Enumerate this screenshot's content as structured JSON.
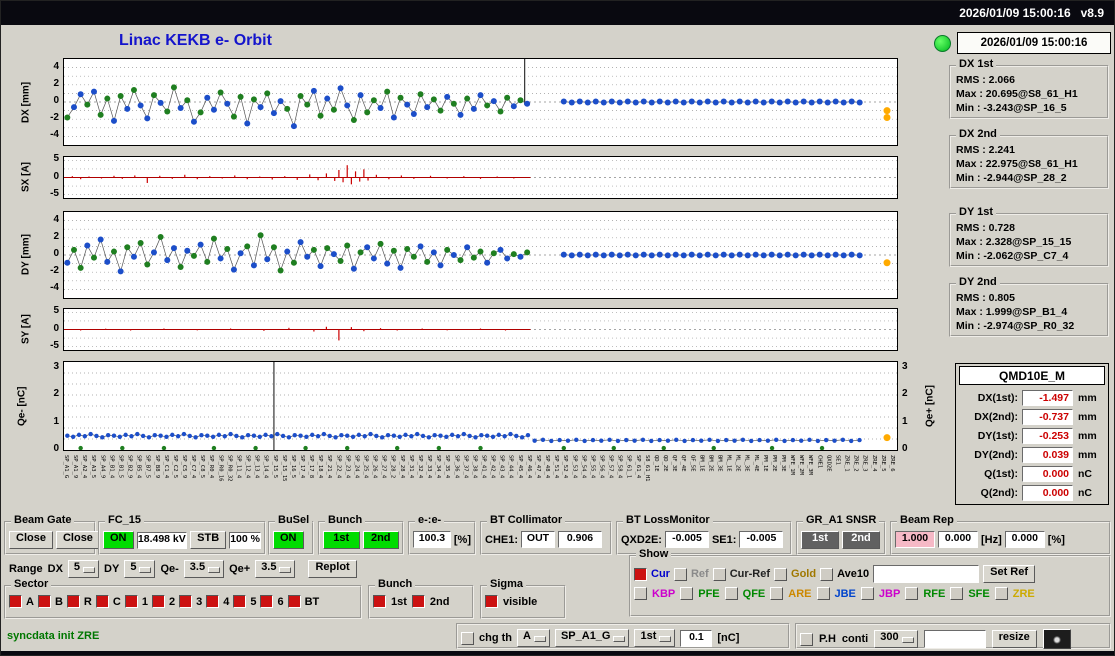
{
  "topbar": {
    "text": "2026/01/09 15:00:16   v8.9"
  },
  "header": {
    "title": "Linac KEKB e- Orbit",
    "timestamp": "2026/01/09 15:00:16"
  },
  "stats": [
    {
      "title": "DX 1st",
      "rows": [
        "RMS : 2.066",
        "Max : 20.695@S8_61_H1",
        "Min : -3.243@SP_16_5"
      ]
    },
    {
      "title": "DX 2nd",
      "rows": [
        "RMS : 2.241",
        "Max : 22.975@S8_61_H1",
        "Min : -2.944@SP_28_2"
      ]
    },
    {
      "title": "DY 1st",
      "rows": [
        "RMS : 0.728",
        "Max : 2.328@SP_15_15",
        "Min : -2.062@SP_C7_4"
      ]
    },
    {
      "title": "DY 2nd",
      "rows": [
        "RMS : 0.805",
        "Max : 1.999@SP_B1_4",
        "Min : -2.974@SP_R0_32"
      ]
    }
  ],
  "qmd": {
    "title": "QMD10E_M",
    "rows": [
      {
        "label": "DX(1st):",
        "value": "-1.497",
        "unit": "mm"
      },
      {
        "label": "DX(2nd):",
        "value": "-0.737",
        "unit": "mm"
      },
      {
        "label": "DY(1st):",
        "value": "-0.253",
        "unit": "mm"
      },
      {
        "label": "DY(2nd):",
        "value": "0.039",
        "unit": "mm"
      },
      {
        "label": "Q(1st):",
        "value": "0.000",
        "unit": "nC"
      },
      {
        "label": "Q(2nd):",
        "value": "0.000",
        "unit": "nC"
      }
    ]
  },
  "plots": [
    {
      "id": "dx",
      "type": "scatter-line",
      "ylabel": "DX [mm]",
      "ymin": -5,
      "ymax": 5,
      "grid": [
        -4,
        -3,
        -2,
        -1,
        1,
        2,
        3,
        4
      ],
      "zero": true,
      "ticks": [
        [
          4,
          "4"
        ],
        [
          2,
          "2"
        ],
        [
          0,
          "0"
        ],
        [
          -2,
          "-2"
        ],
        [
          -4,
          "-4"
        ]
      ],
      "spikes": [
        [
          0.553,
          -0.3,
          5
        ]
      ],
      "markers": [
        [
          0.988,
          -1.0
        ],
        [
          0.988,
          -1.8
        ]
      ],
      "series": [
        {
          "x_start": 0.004,
          "x_step": 0.008,
          "ys": [
            -1.8,
            -0.6,
            0.9,
            -0.3,
            1.2,
            -1.5,
            0.4,
            -2.2,
            0.7,
            -0.8,
            1.4,
            -0.4,
            -1.9,
            0.8,
            -0.1,
            -1.1,
            1.7,
            -0.7,
            0.2,
            -2.3,
            -1.2,
            0.5,
            -0.9,
            1.1,
            -0.2,
            -1.7,
            0.6,
            -2.5,
            0.3,
            -0.6,
            1.0,
            -1.3,
            0.1,
            -0.8,
            -2.8,
            0.7,
            -0.3,
            1.3,
            -1.6,
            0.4,
            -0.9,
            1.6,
            -0.4,
            -2.1,
            0.8,
            -1.2,
            0.2,
            -0.7,
            1.2,
            -1.8,
            0.5,
            -0.3,
            -1.4,
            0.9,
            -0.6,
            0.3,
            -1.0,
            0.6,
            -0.2,
            -1.5,
            0.4,
            -0.8,
            0.8,
            -0.4,
            0.1,
            -1.1,
            0.5,
            -0.5,
            0.2,
            -0.2
          ],
          "cs": "gbbgbggbgbgbbgbggbgbgbbgbggbgbgbbgbggbgbgbbgbggbgbgbbgbggbgbgbbgbggbgb"
        },
        {
          "x_start": 0.6,
          "x_step": 0.0096,
          "ys": [
            0.06,
            -0.06,
            0.06,
            -0.06,
            0.06,
            -0.06,
            0.06,
            -0.06,
            0.06,
            -0.06,
            0.06,
            -0.06,
            0.06,
            -0.06,
            0.06,
            -0.06,
            0.06,
            -0.06,
            0.06,
            -0.06,
            0.06,
            -0.06,
            0.06,
            -0.06,
            0.06,
            -0.06,
            0.06,
            -0.06,
            0.06,
            -0.06,
            0.06,
            -0.06,
            0.06,
            -0.06,
            0.06,
            -0.06,
            0.06,
            -0.06
          ],
          "cs": "b"
        }
      ]
    },
    {
      "id": "sx",
      "type": "bar",
      "ylabel": "SX [A]",
      "ymin": -6,
      "ymax": 6,
      "grid": [
        -5,
        -2.5,
        2.5,
        5
      ],
      "zero": true,
      "ticks": [
        [
          5,
          "5"
        ],
        [
          0,
          "0"
        ],
        [
          -5,
          "-5"
        ]
      ],
      "baseline": [
        0,
        0.56
      ],
      "bars": [
        [
          0.01,
          0.4
        ],
        [
          0.02,
          -0.5
        ],
        [
          0.03,
          0.3
        ],
        [
          0.045,
          -0.3
        ],
        [
          0.06,
          0.5
        ],
        [
          0.07,
          -0.4
        ],
        [
          0.085,
          0.6
        ],
        [
          0.1,
          -1.6
        ],
        [
          0.115,
          0.5
        ],
        [
          0.13,
          -0.4
        ],
        [
          0.145,
          0.8
        ],
        [
          0.16,
          -0.5
        ],
        [
          0.175,
          0.4
        ],
        [
          0.19,
          -0.3
        ],
        [
          0.205,
          0.6
        ],
        [
          0.22,
          -0.5
        ],
        [
          0.235,
          0.3
        ],
        [
          0.25,
          -0.6
        ],
        [
          0.265,
          0.4
        ],
        [
          0.28,
          -0.7
        ],
        [
          0.295,
          0.9
        ],
        [
          0.305,
          -0.8
        ],
        [
          0.315,
          1.2
        ],
        [
          0.325,
          -1.0
        ],
        [
          0.33,
          2.2
        ],
        [
          0.335,
          -1.4
        ],
        [
          0.34,
          3.6
        ],
        [
          0.345,
          -2.0
        ],
        [
          0.35,
          1.8
        ],
        [
          0.355,
          -1.2
        ],
        [
          0.36,
          2.4
        ],
        [
          0.365,
          -0.9
        ],
        [
          0.375,
          0.8
        ],
        [
          0.39,
          -0.5
        ],
        [
          0.405,
          0.6
        ],
        [
          0.42,
          -0.4
        ],
        [
          0.44,
          0.5
        ],
        [
          0.46,
          -0.3
        ],
        [
          0.48,
          0.4
        ],
        [
          0.5,
          -0.4
        ],
        [
          0.52,
          0.3
        ],
        [
          0.54,
          -0.3
        ]
      ]
    },
    {
      "id": "dy",
      "type": "scatter-line",
      "ylabel": "DY [mm]",
      "ymin": -5,
      "ymax": 5,
      "grid": [
        -4,
        -3,
        -2,
        -1,
        1,
        2,
        3,
        4
      ],
      "zero": true,
      "ticks": [
        [
          4,
          "4"
        ],
        [
          2,
          "2"
        ],
        [
          0,
          "0"
        ],
        [
          -2,
          "-2"
        ],
        [
          -4,
          "-4"
        ]
      ],
      "markers": [
        [
          0.988,
          -0.9
        ]
      ],
      "series": [
        {
          "x_start": 0.004,
          "x_step": 0.008,
          "ys": [
            -0.9,
            0.6,
            -1.5,
            1.1,
            -0.3,
            1.8,
            -0.8,
            0.4,
            -1.9,
            0.9,
            -0.2,
            1.4,
            -1.1,
            0.3,
            2.1,
            -0.6,
            0.8,
            -1.4,
            0.5,
            -0.1,
            1.2,
            -0.8,
            1.9,
            -0.4,
            0.7,
            -1.7,
            0.2,
            1.0,
            -1.2,
            2.3,
            -0.5,
            0.9,
            -1.8,
            0.4,
            -0.9,
            1.5,
            -0.2,
            0.6,
            -1.3,
            0.8,
            0.1,
            -0.7,
            1.1,
            -1.6,
            0.3,
            0.9,
            -0.4,
            1.3,
            -1.0,
            0.5,
            -1.5,
            0.7,
            -0.2,
            1.0,
            -0.8,
            0.3,
            -1.2,
            0.6,
            0.0,
            -0.6,
            0.9,
            -0.3,
            0.4,
            -0.9,
            0.2,
            0.6,
            -0.4,
            0.1,
            -0.2,
            0.3
          ],
          "cs": "bggbgbbgbgbggbgbbgbgbggbgbbgbgbggbgbbgbgbggbgbbgbgbggbgbbgbgbggbgbbgbg"
        },
        {
          "x_start": 0.6,
          "x_step": 0.0096,
          "ys": [
            0.04,
            -0.04,
            0.04,
            -0.04,
            0.04,
            -0.04,
            0.04,
            -0.04,
            0.04,
            -0.04,
            0.04,
            -0.04,
            0.04,
            -0.04,
            0.04,
            -0.04,
            0.04,
            -0.04,
            0.04,
            -0.04,
            0.04,
            -0.04,
            0.04,
            -0.04,
            0.04,
            -0.04,
            0.04,
            -0.04,
            0.04,
            -0.04,
            0.04,
            -0.04,
            0.04,
            -0.04,
            0.04,
            -0.04,
            0.04,
            -0.04
          ],
          "cs": "b"
        }
      ]
    },
    {
      "id": "sy",
      "type": "bar",
      "ylabel": "SY [A]",
      "ymin": -6,
      "ymax": 6,
      "grid": [
        -5,
        -2.5,
        2.5,
        5
      ],
      "zero": true,
      "ticks": [
        [
          5,
          "5"
        ],
        [
          0,
          "0"
        ],
        [
          -5,
          "-5"
        ]
      ],
      "baseline": [
        0,
        0.56
      ],
      "bars": [
        [
          0.02,
          -0.3
        ],
        [
          0.05,
          0.25
        ],
        [
          0.08,
          -0.3
        ],
        [
          0.12,
          0.3
        ],
        [
          0.16,
          -0.25
        ],
        [
          0.2,
          0.3
        ],
        [
          0.24,
          -0.4
        ],
        [
          0.27,
          0.5
        ],
        [
          0.3,
          -0.6
        ],
        [
          0.315,
          0.8
        ],
        [
          0.33,
          -3.2
        ],
        [
          0.345,
          0.7
        ],
        [
          0.36,
          -0.5
        ],
        [
          0.38,
          0.4
        ],
        [
          0.4,
          -0.3
        ],
        [
          0.43,
          0.3
        ],
        [
          0.46,
          -0.25
        ],
        [
          0.5,
          0.3
        ],
        [
          0.53,
          -0.3
        ]
      ]
    },
    {
      "id": "qe",
      "type": "scatter-line",
      "ylabel": "Qe- [nC]",
      "ylabel_right": "Qe+ [nC]",
      "ymin": 0,
      "ymax": 3.2,
      "r": 2.2,
      "grid": [
        0.4,
        0.8,
        1.2,
        1.6,
        2.0,
        2.4,
        2.8
      ],
      "zero": false,
      "ticks": [
        [
          0,
          "0"
        ],
        [
          1,
          "1"
        ],
        [
          2,
          "2"
        ],
        [
          3,
          "3"
        ]
      ],
      "ticks_right": [
        [
          0,
          "0"
        ],
        [
          1,
          "1"
        ],
        [
          2,
          "2"
        ],
        [
          3,
          "3"
        ]
      ],
      "spikes": [
        [
          0.252,
          0,
          3.2
        ]
      ],
      "markers": [
        [
          0.988,
          0.45
        ]
      ],
      "series": [
        {
          "x_start": 0.004,
          "x_step": 0.007,
          "ys": [
            0.52,
            0.48,
            0.55,
            0.5,
            0.58,
            0.51,
            0.46,
            0.54,
            0.52,
            0.48,
            0.55,
            0.5,
            0.58,
            0.51,
            0.46,
            0.54,
            0.52,
            0.48,
            0.55,
            0.5,
            0.58,
            0.51,
            0.46,
            0.54,
            0.52,
            0.48,
            0.55,
            0.5,
            0.58,
            0.51,
            0.46,
            0.54,
            0.52,
            0.48,
            0.55,
            0.5,
            0.58,
            0.51,
            0.46,
            0.54,
            0.52,
            0.48,
            0.55,
            0.5,
            0.58,
            0.51,
            0.46,
            0.54,
            0.52,
            0.48,
            0.55,
            0.5,
            0.58,
            0.51,
            0.46,
            0.54,
            0.52,
            0.48,
            0.55,
            0.5,
            0.58,
            0.51,
            0.46,
            0.54,
            0.52,
            0.48,
            0.55,
            0.5,
            0.58,
            0.51,
            0.46,
            0.54,
            0.52,
            0.48,
            0.55,
            0.5,
            0.58,
            0.51,
            0.46,
            0.54
          ],
          "cs": "b"
        },
        {
          "x_start": 0.565,
          "x_step": 0.01,
          "ys": [
            0.34,
            0.37,
            0.33,
            0.36,
            0.34,
            0.37,
            0.33,
            0.36,
            0.34,
            0.37,
            0.33,
            0.36,
            0.34,
            0.37,
            0.33,
            0.36,
            0.34,
            0.37,
            0.33,
            0.36,
            0.34,
            0.37,
            0.33,
            0.36,
            0.34,
            0.37,
            0.33,
            0.36,
            0.34,
            0.37,
            0.33,
            0.36,
            0.34,
            0.37,
            0.33,
            0.36,
            0.34,
            0.37,
            0.33,
            0.36
          ],
          "cs": "b"
        },
        {
          "xs": [
            0.02,
            0.07,
            0.12,
            0.18,
            0.23,
            0.29,
            0.34,
            0.4,
            0.45,
            0.5,
            0.6,
            0.66,
            0.72,
            0.78,
            0.85,
            0.91
          ],
          "ys": [
            0.07,
            0.07,
            0.07,
            0.07,
            0.07,
            0.07,
            0.07,
            0.07,
            0.07,
            0.07,
            0.07,
            0.07,
            0.07,
            0.07,
            0.07,
            0.07
          ],
          "cs": "g",
          "line": false
        }
      ]
    }
  ],
  "xlabels": [
    "SP_A1_G",
    "SP_A1_9",
    "SP_A2_4",
    "SP_A3_5",
    "SP_A4_9",
    "SP_B1_4",
    "SP_B1_5",
    "SP_B2_9",
    "SP_B5_4",
    "SP_B7_5",
    "SP_B8_9",
    "SP_C1_4",
    "SP_C2_5",
    "SP_C5_9",
    "SP_C7_4",
    "SP_C8_5",
    "SP_R0_4",
    "SP_R0_16",
    "SP_R0_32",
    "SP_11_4",
    "SP_12_4",
    "SP_13_4",
    "SP_14_4",
    "SP_15_5",
    "SP_15_15",
    "SP_16_5",
    "SP_17_4",
    "SP_17_8",
    "SP_18_4",
    "SP_21_4",
    "SP_22_4",
    "SP_23_4",
    "SP_24_4",
    "SP_25_4",
    "SP_26_4",
    "SP_27_4",
    "SP_28_2",
    "SP_28_4",
    "SP_31_4",
    "SP_32_4",
    "SP_33_4",
    "SP_34_4",
    "SP_35_4",
    "SP_36_4",
    "SP_37_4",
    "SP_38_4",
    "SP_41_4",
    "SP_42_4",
    "SP_43_4",
    "SP_44_4",
    "SP_45_4",
    "SP_46_4",
    "SP_47_4",
    "SP_48_4",
    "SP_51_4",
    "SP_52_4",
    "SP_53_4",
    "SP_54_4",
    "SP_55_4",
    "SP_56_4",
    "SP_57_4",
    "SP_58_4",
    "SP_61_1",
    "SP_61_4",
    "S8_61_H1",
    "QD_1E",
    "QD_2E",
    "QF_3E",
    "QF_4E",
    "QF_5E",
    "BM_1E",
    "BM_2E",
    "BM_3E",
    "ML_1E",
    "ML_2E",
    "ML_3E",
    "ML_4E",
    "PM_1E",
    "PM_2E",
    "PM_3E",
    "WFE_1M",
    "WFE_2M",
    "WFE_3M",
    "CHE1",
    "QXD2E",
    "SE1",
    "ZRE_1",
    "ZRE_2",
    "ZRE_3",
    "ZRE_4",
    "ZRE_5",
    "ZRE_6"
  ],
  "controls": {
    "beam_gate": {
      "label": "Beam Gate",
      "b1": "Close",
      "b2": "Close"
    },
    "fc15": {
      "label": "FC_15",
      "on": "ON",
      "kv": "18.498 kV",
      "stb": "STB",
      "pct": "100 %"
    },
    "busel": {
      "label": "BuSel",
      "on": "ON"
    },
    "bunch": {
      "label": "Bunch",
      "b1": "1st",
      "b2": "2nd"
    },
    "ee": {
      "label": "e-:e-",
      "value": "100.3",
      "unit": "[%]"
    },
    "btcol": {
      "label": "BT Collimator",
      "che1": "CHE1:",
      "out": "OUT",
      "val": "0.906"
    },
    "btloss": {
      "label": "BT LossMonitor",
      "n1": "QXD2E:",
      "v1": "-0.005",
      "n2": "SE1:",
      "v2": "-0.005"
    },
    "gr": {
      "label": "GR_A1 SNSR",
      "b1": "1st",
      "b2": "2nd"
    },
    "beamrep": {
      "label": "Beam Rep",
      "v1": "1.000",
      "v2": "0.000",
      "hz": "[Hz]",
      "v3": "0.000",
      "pct": "[%]"
    },
    "range": {
      "label": "Range",
      "dx": "DX",
      "dxv": "5",
      "dy": "DY",
      "dyv": "5",
      "qem": "Qe-",
      "qemv": "3.5",
      "qep": "Qe+",
      "qepv": "3.5",
      "replot": "Replot"
    },
    "show": {
      "label": "Show",
      "row1": [
        {
          "label": "Cur",
          "color": "#0000cc",
          "on": true
        },
        {
          "label": "Ref",
          "color": "#8a8a8a",
          "on": false
        },
        {
          "label": "Cur-Ref",
          "color": "#222222",
          "on": false
        },
        {
          "label": "Gold",
          "color": "#a07800",
          "on": false
        },
        {
          "label": "Ave10",
          "color": "#000000",
          "on": false
        }
      ],
      "set_ref": "Set Ref",
      "row2": [
        {
          "label": "KBP",
          "color": "#cc00cc"
        },
        {
          "label": "PFE",
          "color": "#008800"
        },
        {
          "label": "QFE",
          "color": "#008800"
        },
        {
          "label": "ARE",
          "color": "#cc8800"
        },
        {
          "label": "JBE",
          "color": "#0044cc"
        },
        {
          "label": "JBP",
          "color": "#cc00cc"
        },
        {
          "label": "RFE",
          "color": "#008800"
        },
        {
          "label": "SFE",
          "color": "#008800"
        },
        {
          "label": "ZRE",
          "color": "#ccaa00"
        }
      ]
    },
    "sector": {
      "label": "Sector",
      "items": [
        "A",
        "B",
        "R",
        "C",
        "1",
        "2",
        "3",
        "4",
        "5",
        "6",
        "BT"
      ]
    },
    "bunch2": {
      "label": "Bunch",
      "items": [
        "1st",
        "2nd"
      ]
    },
    "sigma": {
      "label": "Sigma",
      "item": "visible"
    },
    "status": "syncdata init ZRE",
    "bottom": {
      "chg": "chg th",
      "a": "A",
      "sp": "SP_A1_G",
      "first": "1st",
      "th": "0.1",
      "nc": "[nC]",
      "ph": "P.H",
      "conti": "conti",
      "n300": "300",
      "resize": "resize"
    }
  }
}
